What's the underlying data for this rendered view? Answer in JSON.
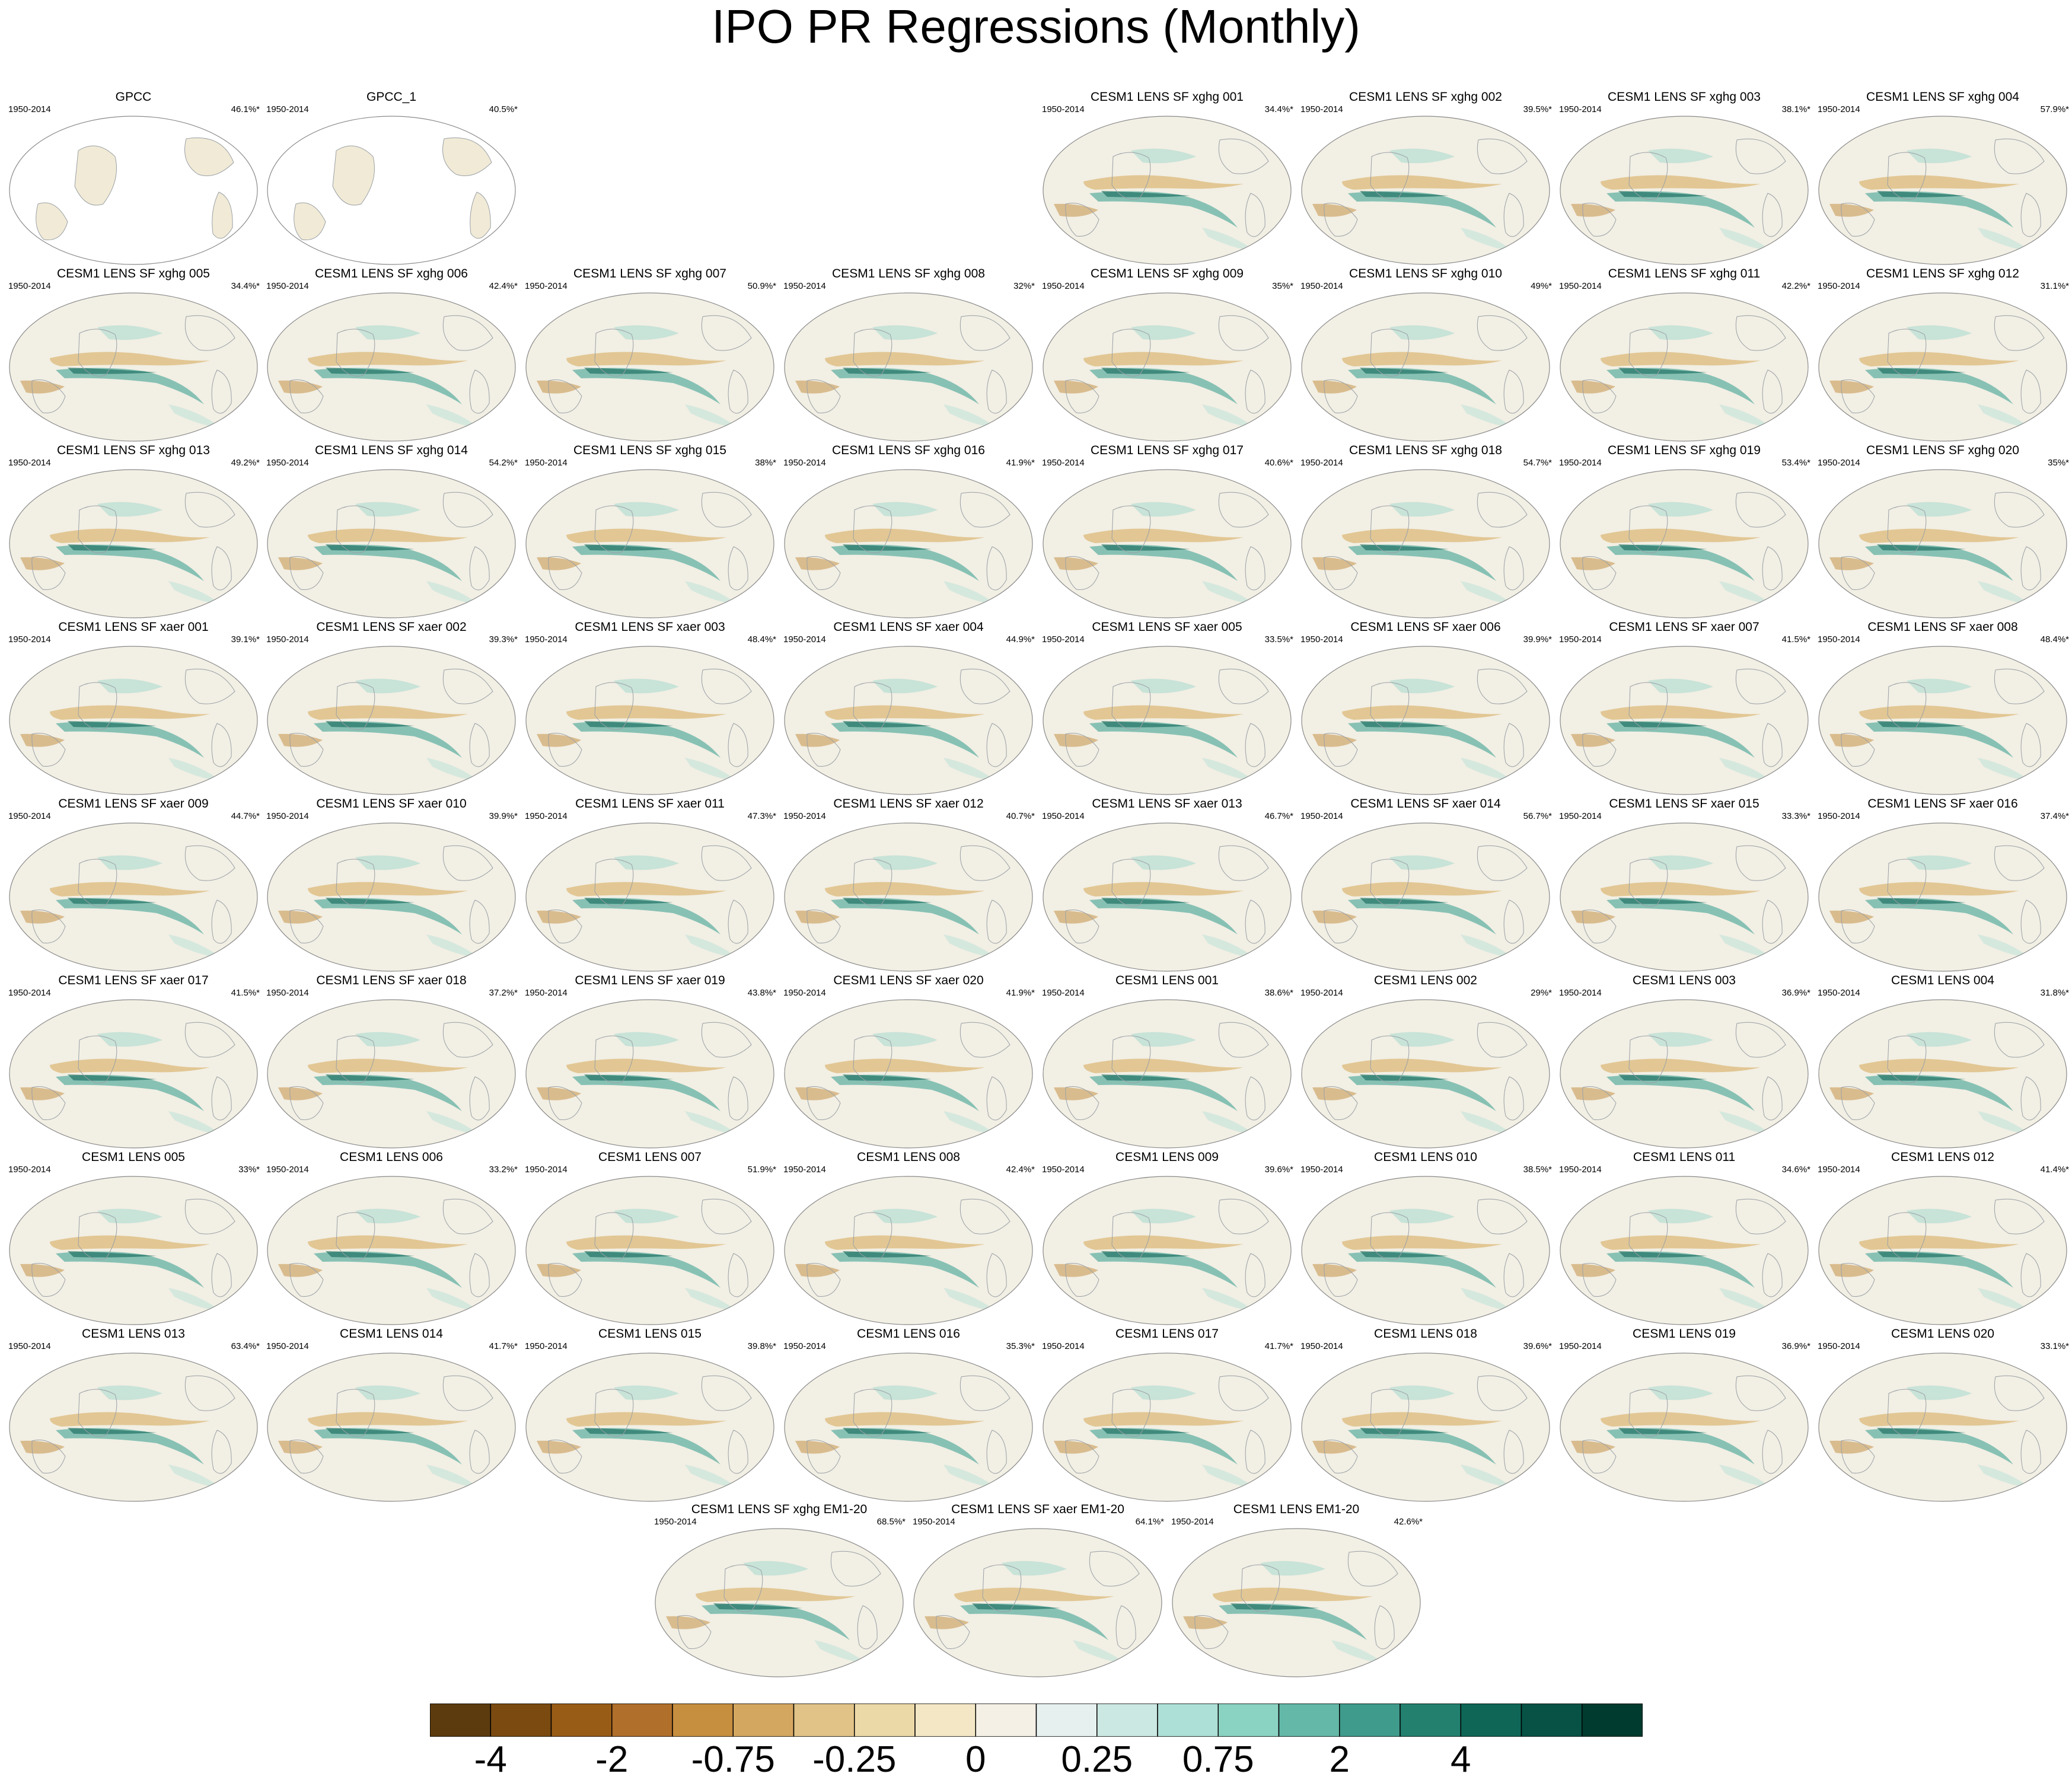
{
  "title": "IPO PR Regressions (Monthly)",
  "chart_data": {
    "type": "heatmap",
    "title": "IPO PR Regressions (Monthly)",
    "map_projection": "global map, Pacific-centered",
    "period": "1950-2014",
    "panels": [
      {
        "name": "GPCC",
        "period": "1950-2014",
        "value": "46.1%*",
        "col": 0,
        "row": 0,
        "obs": true
      },
      {
        "name": "GPCC_1",
        "period": "1950-2014",
        "value": "40.5%*",
        "col": 1,
        "row": 0,
        "obs": true
      },
      {
        "name": "CESM1 LENS SF xghg 001",
        "period": "1950-2014",
        "value": "34.4%*",
        "col": 4,
        "row": 0
      },
      {
        "name": "CESM1 LENS SF xghg 002",
        "period": "1950-2014",
        "value": "39.5%*",
        "col": 5,
        "row": 0
      },
      {
        "name": "CESM1 LENS SF xghg 003",
        "period": "1950-2014",
        "value": "38.1%*",
        "col": 6,
        "row": 0
      },
      {
        "name": "CESM1 LENS SF xghg 004",
        "period": "1950-2014",
        "value": "57.9%*",
        "col": 7,
        "row": 0
      },
      {
        "name": "CESM1 LENS SF xghg 005",
        "period": "1950-2014",
        "value": "34.4%*",
        "col": 0,
        "row": 1
      },
      {
        "name": "CESM1 LENS SF xghg 006",
        "period": "1950-2014",
        "value": "42.4%*",
        "col": 1,
        "row": 1
      },
      {
        "name": "CESM1 LENS SF xghg 007",
        "period": "1950-2014",
        "value": "50.9%*",
        "col": 2,
        "row": 1
      },
      {
        "name": "CESM1 LENS SF xghg 008",
        "period": "1950-2014",
        "value": "32%*",
        "col": 3,
        "row": 1
      },
      {
        "name": "CESM1 LENS SF xghg 009",
        "period": "1950-2014",
        "value": "35%*",
        "col": 4,
        "row": 1
      },
      {
        "name": "CESM1 LENS SF xghg 010",
        "period": "1950-2014",
        "value": "49%*",
        "col": 5,
        "row": 1
      },
      {
        "name": "CESM1 LENS SF xghg 011",
        "period": "1950-2014",
        "value": "42.2%*",
        "col": 6,
        "row": 1
      },
      {
        "name": "CESM1 LENS SF xghg 012",
        "period": "1950-2014",
        "value": "31.1%*",
        "col": 7,
        "row": 1
      },
      {
        "name": "CESM1 LENS SF xghg 013",
        "period": "1950-2014",
        "value": "49.2%*",
        "col": 0,
        "row": 2
      },
      {
        "name": "CESM1 LENS SF xghg 014",
        "period": "1950-2014",
        "value": "54.2%*",
        "col": 1,
        "row": 2
      },
      {
        "name": "CESM1 LENS SF xghg 015",
        "period": "1950-2014",
        "value": "38%*",
        "col": 2,
        "row": 2
      },
      {
        "name": "CESM1 LENS SF xghg 016",
        "period": "1950-2014",
        "value": "41.9%*",
        "col": 3,
        "row": 2
      },
      {
        "name": "CESM1 LENS SF xghg 017",
        "period": "1950-2014",
        "value": "40.6%*",
        "col": 4,
        "row": 2
      },
      {
        "name": "CESM1 LENS SF xghg 018",
        "period": "1950-2014",
        "value": "54.7%*",
        "col": 5,
        "row": 2
      },
      {
        "name": "CESM1 LENS SF xghg 019",
        "period": "1950-2014",
        "value": "53.4%*",
        "col": 6,
        "row": 2
      },
      {
        "name": "CESM1 LENS SF xghg 020",
        "period": "1950-2014",
        "value": "35%*",
        "col": 7,
        "row": 2
      },
      {
        "name": "CESM1 LENS SF xaer 001",
        "period": "1950-2014",
        "value": "39.1%*",
        "col": 0,
        "row": 3
      },
      {
        "name": "CESM1 LENS SF xaer 002",
        "period": "1950-2014",
        "value": "39.3%*",
        "col": 1,
        "row": 3
      },
      {
        "name": "CESM1 LENS SF xaer 003",
        "period": "1950-2014",
        "value": "48.4%*",
        "col": 2,
        "row": 3
      },
      {
        "name": "CESM1 LENS SF xaer 004",
        "period": "1950-2014",
        "value": "44.9%*",
        "col": 3,
        "row": 3
      },
      {
        "name": "CESM1 LENS SF xaer 005",
        "period": "1950-2014",
        "value": "33.5%*",
        "col": 4,
        "row": 3
      },
      {
        "name": "CESM1 LENS SF xaer 006",
        "period": "1950-2014",
        "value": "39.9%*",
        "col": 5,
        "row": 3
      },
      {
        "name": "CESM1 LENS SF xaer 007",
        "period": "1950-2014",
        "value": "41.5%*",
        "col": 6,
        "row": 3
      },
      {
        "name": "CESM1 LENS SF xaer 008",
        "period": "1950-2014",
        "value": "48.4%*",
        "col": 7,
        "row": 3
      },
      {
        "name": "CESM1 LENS SF xaer 009",
        "period": "1950-2014",
        "value": "44.7%*",
        "col": 0,
        "row": 4
      },
      {
        "name": "CESM1 LENS SF xaer 010",
        "period": "1950-2014",
        "value": "39.9%*",
        "col": 1,
        "row": 4
      },
      {
        "name": "CESM1 LENS SF xaer 011",
        "period": "1950-2014",
        "value": "47.3%*",
        "col": 2,
        "row": 4
      },
      {
        "name": "CESM1 LENS SF xaer 012",
        "period": "1950-2014",
        "value": "40.7%*",
        "col": 3,
        "row": 4
      },
      {
        "name": "CESM1 LENS SF xaer 013",
        "period": "1950-2014",
        "value": "46.7%*",
        "col": 4,
        "row": 4
      },
      {
        "name": "CESM1 LENS SF xaer 014",
        "period": "1950-2014",
        "value": "56.7%*",
        "col": 5,
        "row": 4
      },
      {
        "name": "CESM1 LENS SF xaer 015",
        "period": "1950-2014",
        "value": "33.3%*",
        "col": 6,
        "row": 4
      },
      {
        "name": "CESM1 LENS SF xaer 016",
        "period": "1950-2014",
        "value": "37.4%*",
        "col": 7,
        "row": 4
      },
      {
        "name": "CESM1 LENS SF xaer 017",
        "period": "1950-2014",
        "value": "41.5%*",
        "col": 0,
        "row": 5
      },
      {
        "name": "CESM1 LENS SF xaer 018",
        "period": "1950-2014",
        "value": "37.2%*",
        "col": 1,
        "row": 5
      },
      {
        "name": "CESM1 LENS SF xaer 019",
        "period": "1950-2014",
        "value": "43.8%*",
        "col": 2,
        "row": 5
      },
      {
        "name": "CESM1 LENS SF xaer 020",
        "period": "1950-2014",
        "value": "41.9%*",
        "col": 3,
        "row": 5
      },
      {
        "name": "CESM1 LENS 001",
        "period": "1950-2014",
        "value": "38.6%*",
        "col": 4,
        "row": 5
      },
      {
        "name": "CESM1 LENS 002",
        "period": "1950-2014",
        "value": "29%*",
        "col": 5,
        "row": 5
      },
      {
        "name": "CESM1 LENS 003",
        "period": "1950-2014",
        "value": "36.9%*",
        "col": 6,
        "row": 5
      },
      {
        "name": "CESM1 LENS 004",
        "period": "1950-2014",
        "value": "31.8%*",
        "col": 7,
        "row": 5
      },
      {
        "name": "CESM1 LENS 005",
        "period": "1950-2014",
        "value": "33%*",
        "col": 0,
        "row": 6
      },
      {
        "name": "CESM1 LENS 006",
        "period": "1950-2014",
        "value": "33.2%*",
        "col": 1,
        "row": 6
      },
      {
        "name": "CESM1 LENS 007",
        "period": "1950-2014",
        "value": "51.9%*",
        "col": 2,
        "row": 6
      },
      {
        "name": "CESM1 LENS 008",
        "period": "1950-2014",
        "value": "42.4%*",
        "col": 3,
        "row": 6
      },
      {
        "name": "CESM1 LENS 009",
        "period": "1950-2014",
        "value": "39.6%*",
        "col": 4,
        "row": 6
      },
      {
        "name": "CESM1 LENS 010",
        "period": "1950-2014",
        "value": "38.5%*",
        "col": 5,
        "row": 6
      },
      {
        "name": "CESM1 LENS 011",
        "period": "1950-2014",
        "value": "34.6%*",
        "col": 6,
        "row": 6
      },
      {
        "name": "CESM1 LENS 012",
        "period": "1950-2014",
        "value": "41.4%*",
        "col": 7,
        "row": 6
      },
      {
        "name": "CESM1 LENS 013",
        "period": "1950-2014",
        "value": "63.4%*",
        "col": 0,
        "row": 7
      },
      {
        "name": "CESM1 LENS 014",
        "period": "1950-2014",
        "value": "41.7%*",
        "col": 1,
        "row": 7
      },
      {
        "name": "CESM1 LENS 015",
        "period": "1950-2014",
        "value": "39.8%*",
        "col": 2,
        "row": 7
      },
      {
        "name": "CESM1 LENS 016",
        "period": "1950-2014",
        "value": "35.3%*",
        "col": 3,
        "row": 7
      },
      {
        "name": "CESM1 LENS 017",
        "period": "1950-2014",
        "value": "41.7%*",
        "col": 4,
        "row": 7
      },
      {
        "name": "CESM1 LENS 018",
        "period": "1950-2014",
        "value": "39.6%*",
        "col": 5,
        "row": 7
      },
      {
        "name": "CESM1 LENS 019",
        "period": "1950-2014",
        "value": "36.9%*",
        "col": 6,
        "row": 7
      },
      {
        "name": "CESM1 LENS 020",
        "period": "1950-2014",
        "value": "33.1%*",
        "col": 7,
        "row": 7
      },
      {
        "name": "CESM1 LENS SF xghg EM1-20",
        "period": "1950-2014",
        "value": "68.5%*",
        "col": 2.5,
        "row": 8
      },
      {
        "name": "CESM1 LENS SF xaer EM1-20",
        "period": "1950-2014",
        "value": "64.1%*",
        "col": 3.5,
        "row": 8
      },
      {
        "name": "CESM1 LENS EM1-20",
        "period": "1950-2014",
        "value": "42.6%*",
        "col": 4.5,
        "row": 8
      }
    ],
    "colorbar": {
      "colors": [
        "#5c3b0f",
        "#7a4a10",
        "#995c16",
        "#b06f2a",
        "#c68e3f",
        "#d4a760",
        "#e1c388",
        "#ecd9a8",
        "#f3e7c5",
        "#f4f0e6",
        "#e6f1ef",
        "#cce8e2",
        "#ade0d6",
        "#8ad2c2",
        "#63b8a8",
        "#3f9b8c",
        "#23806f",
        "#0f6657",
        "#075245",
        "#003b2f"
      ],
      "tick_labels": [
        "-4",
        "-2",
        "-0.75",
        "-0.25",
        "0",
        "0.25",
        "0.75",
        "2",
        "4"
      ],
      "tick_boundaries": [
        1,
        3,
        5,
        7,
        9,
        11,
        13,
        15,
        17
      ]
    }
  }
}
